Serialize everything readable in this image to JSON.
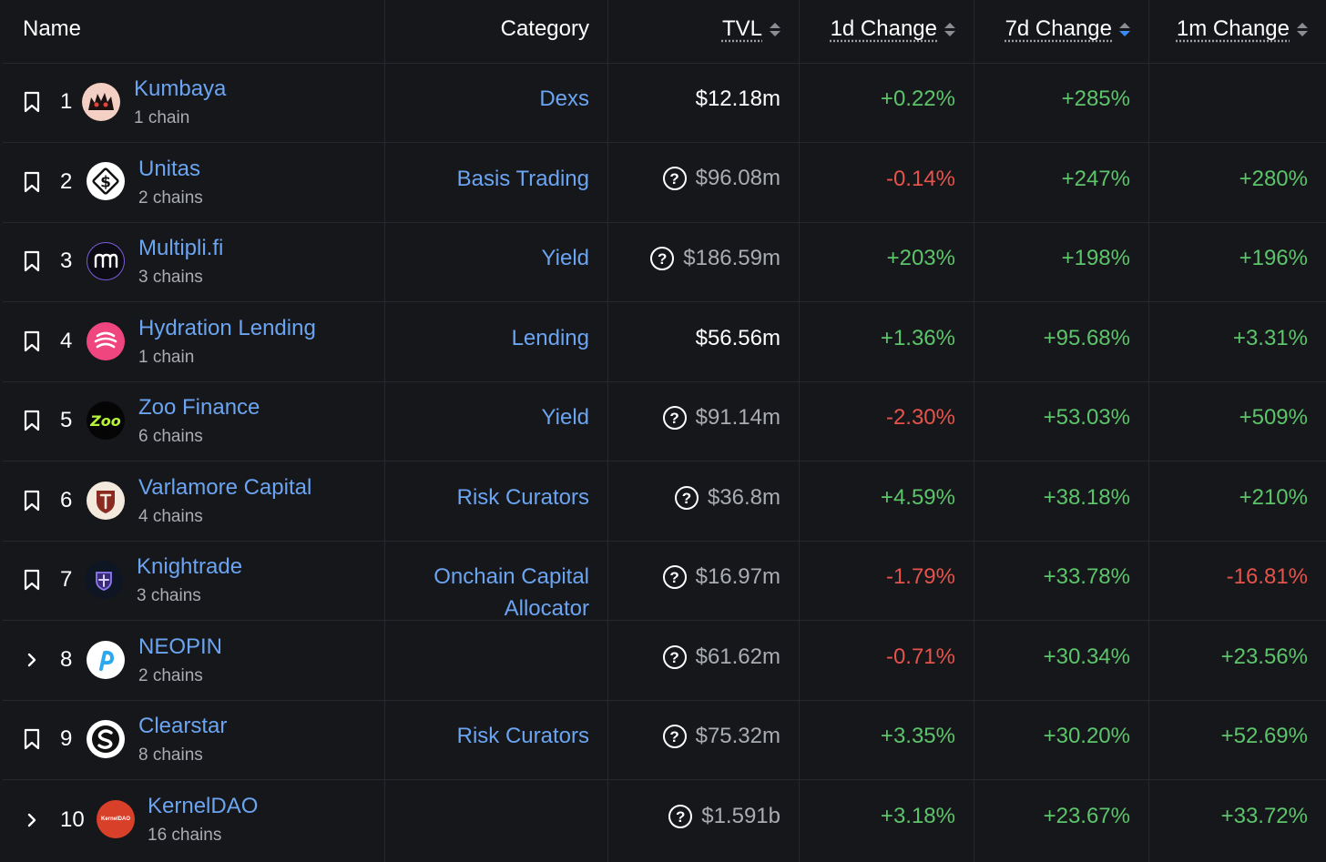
{
  "header": {
    "name": "Name",
    "category": "Category",
    "tvl": "TVL",
    "change_1d": "1d Change",
    "change_7d": "7d Change",
    "change_1m": "1m Change"
  },
  "rows": [
    {
      "rank": "1",
      "name": "Kumbaya",
      "chains": "1 chain",
      "category": "Dexs",
      "tvl": "$12.18m",
      "c1d": "+0.22%",
      "c7d": "+285%",
      "c1m": ""
    },
    {
      "rank": "2",
      "name": "Unitas",
      "chains": "2 chains",
      "category": "Basis Trading",
      "tvl": "$96.08m",
      "c1d": "-0.14%",
      "c7d": "+247%",
      "c1m": "+280%"
    },
    {
      "rank": "3",
      "name": "Multipli.fi",
      "chains": "3 chains",
      "category": "Yield",
      "tvl": "$186.59m",
      "c1d": "+203%",
      "c7d": "+198%",
      "c1m": "+196%"
    },
    {
      "rank": "4",
      "name": "Hydration Lending",
      "chains": "1 chain",
      "category": "Lending",
      "tvl": "$56.56m",
      "c1d": "+1.36%",
      "c7d": "+95.68%",
      "c1m": "+3.31%"
    },
    {
      "rank": "5",
      "name": "Zoo Finance",
      "chains": "6 chains",
      "category": "Yield",
      "tvl": "$91.14m",
      "c1d": "-2.30%",
      "c7d": "+53.03%",
      "c1m": "+509%"
    },
    {
      "rank": "6",
      "name": "Varlamore Capital",
      "chains": "4 chains",
      "category": "Risk Curators",
      "tvl": "$36.8m",
      "c1d": "+4.59%",
      "c7d": "+38.18%",
      "c1m": "+210%"
    },
    {
      "rank": "7",
      "name": "Knightrade",
      "chains": "3 chains",
      "category_line1": "Onchain Capital",
      "category_line2": "Allocator",
      "tvl": "$16.97m",
      "c1d": "-1.79%",
      "c7d": "+33.78%",
      "c1m": "-16.81%"
    },
    {
      "rank": "8",
      "name": "NEOPIN",
      "chains": "2 chains",
      "category": "",
      "tvl": "$61.62m",
      "c1d": "-0.71%",
      "c7d": "+30.34%",
      "c1m": "+23.56%"
    },
    {
      "rank": "9",
      "name": "Clearstar",
      "chains": "8 chains",
      "category": "Risk Curators",
      "tvl": "$75.32m",
      "c1d": "+3.35%",
      "c7d": "+30.20%",
      "c1m": "+52.69%"
    },
    {
      "rank": "10",
      "name": "KernelDAO",
      "chains": "16 chains",
      "category": "",
      "tvl": "$1.591b",
      "c1d": "+3.18%",
      "c7d": "+23.67%",
      "c1m": "+33.72%"
    }
  ],
  "logos": {
    "r1": "Kumbaya",
    "r2": "Unitas",
    "r3": "Multipli",
    "r4": "Hydration",
    "r5": "Zoo",
    "r5_text": "Zoo",
    "r6": "Varlamore",
    "r7": "Knightrade",
    "r8": "NEOPIN",
    "r9": "Clearstar",
    "r10": "KernelDAO",
    "r10_text": "KernelDAO"
  },
  "icons": {
    "bookmark": "bookmark-icon",
    "expand": "chevron-right-icon",
    "help": "question-circle-icon",
    "sort": "sort-icon"
  },
  "colors": {
    "positive": "#5cc46a",
    "negative": "#e5534b",
    "link": "#6ba4f0",
    "background": "#16171b",
    "sort_active": "#3b8cf7"
  },
  "sort": {
    "column": "7d Change",
    "direction": "descending"
  }
}
